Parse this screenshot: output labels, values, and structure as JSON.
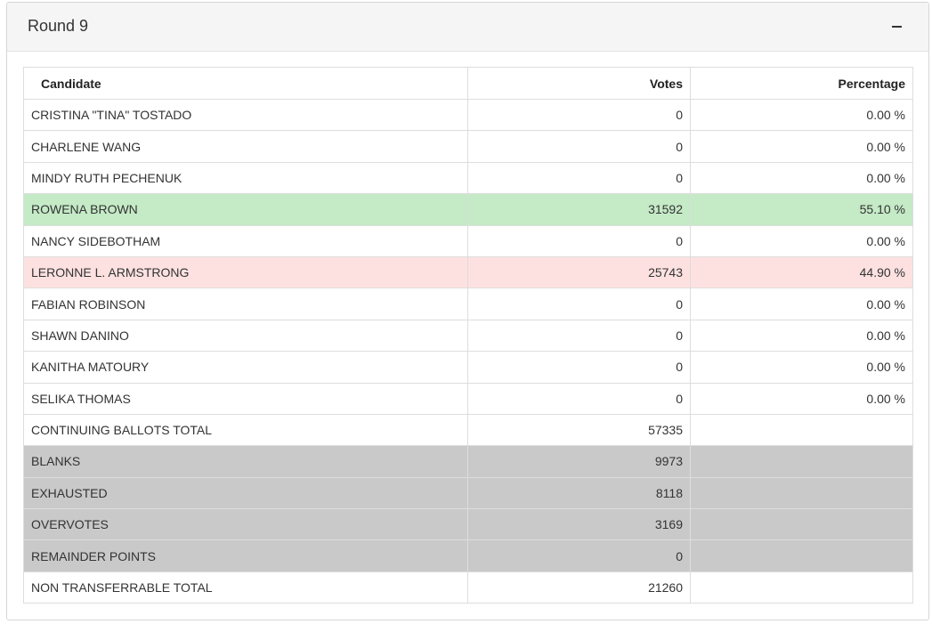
{
  "panel": {
    "title": "Round 9",
    "collapse_symbol": "–"
  },
  "table": {
    "headers": {
      "candidate": "Candidate",
      "votes": "Votes",
      "percentage": "Percentage"
    },
    "rows": [
      {
        "candidate": "CRISTINA \"TINA\" TOSTADO",
        "votes": "0",
        "percentage": "0.00 %",
        "status": "normal"
      },
      {
        "candidate": "CHARLENE WANG",
        "votes": "0",
        "percentage": "0.00 %",
        "status": "normal"
      },
      {
        "candidate": "MINDY RUTH PECHENUK",
        "votes": "0",
        "percentage": "0.00 %",
        "status": "normal"
      },
      {
        "candidate": "ROWENA BROWN",
        "votes": "31592",
        "percentage": "55.10 %",
        "status": "winner"
      },
      {
        "candidate": "NANCY SIDEBOTHAM",
        "votes": "0",
        "percentage": "0.00 %",
        "status": "normal"
      },
      {
        "candidate": "LERONNE L. ARMSTRONG",
        "votes": "25743",
        "percentage": "44.90 %",
        "status": "eliminated"
      },
      {
        "candidate": "FABIAN ROBINSON",
        "votes": "0",
        "percentage": "0.00 %",
        "status": "normal"
      },
      {
        "candidate": "SHAWN DANINO",
        "votes": "0",
        "percentage": "0.00 %",
        "status": "normal"
      },
      {
        "candidate": "KANITHA MATOURY",
        "votes": "0",
        "percentage": "0.00 %",
        "status": "normal"
      },
      {
        "candidate": "SELIKA THOMAS",
        "votes": "0",
        "percentage": "0.00 %",
        "status": "normal"
      },
      {
        "candidate": "CONTINUING BALLOTS TOTAL",
        "votes": "57335",
        "percentage": "",
        "status": "normal"
      },
      {
        "candidate": "BLANKS",
        "votes": "9973",
        "percentage": "",
        "status": "gray"
      },
      {
        "candidate": "EXHAUSTED",
        "votes": "8118",
        "percentage": "",
        "status": "gray"
      },
      {
        "candidate": "OVERVOTES",
        "votes": "3169",
        "percentage": "",
        "status": "gray"
      },
      {
        "candidate": "REMAINDER POINTS",
        "votes": "0",
        "percentage": "",
        "status": "gray"
      },
      {
        "candidate": "NON TRANSFERRABLE TOTAL",
        "votes": "21260",
        "percentage": "",
        "status": "normal"
      }
    ]
  },
  "colors": {
    "winner_row": "#c4eac6",
    "eliminated_row": "#fde1e1",
    "gray_row": "#c9c9c9",
    "header_bg": "#f5f5f5"
  }
}
